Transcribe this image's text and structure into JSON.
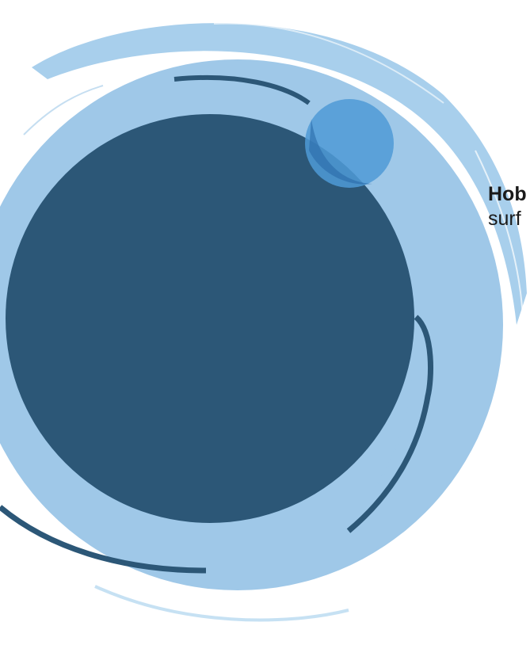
{
  "caption": {
    "bold_text": "Hob",
    "continuation_text": "surf"
  },
  "colors": {
    "outer_ring": "#9fc8e8",
    "inner_disc": "#2c5777",
    "accent_circle": "#4f9ad6",
    "background": "#ffffff",
    "text": "#1a1a1a"
  },
  "graphics": {
    "outer_ring_icon": "brush-stroke-ring",
    "inner_disc_icon": "dark-blue-brush-circle",
    "accent_icon": "small-translucent-circle"
  }
}
